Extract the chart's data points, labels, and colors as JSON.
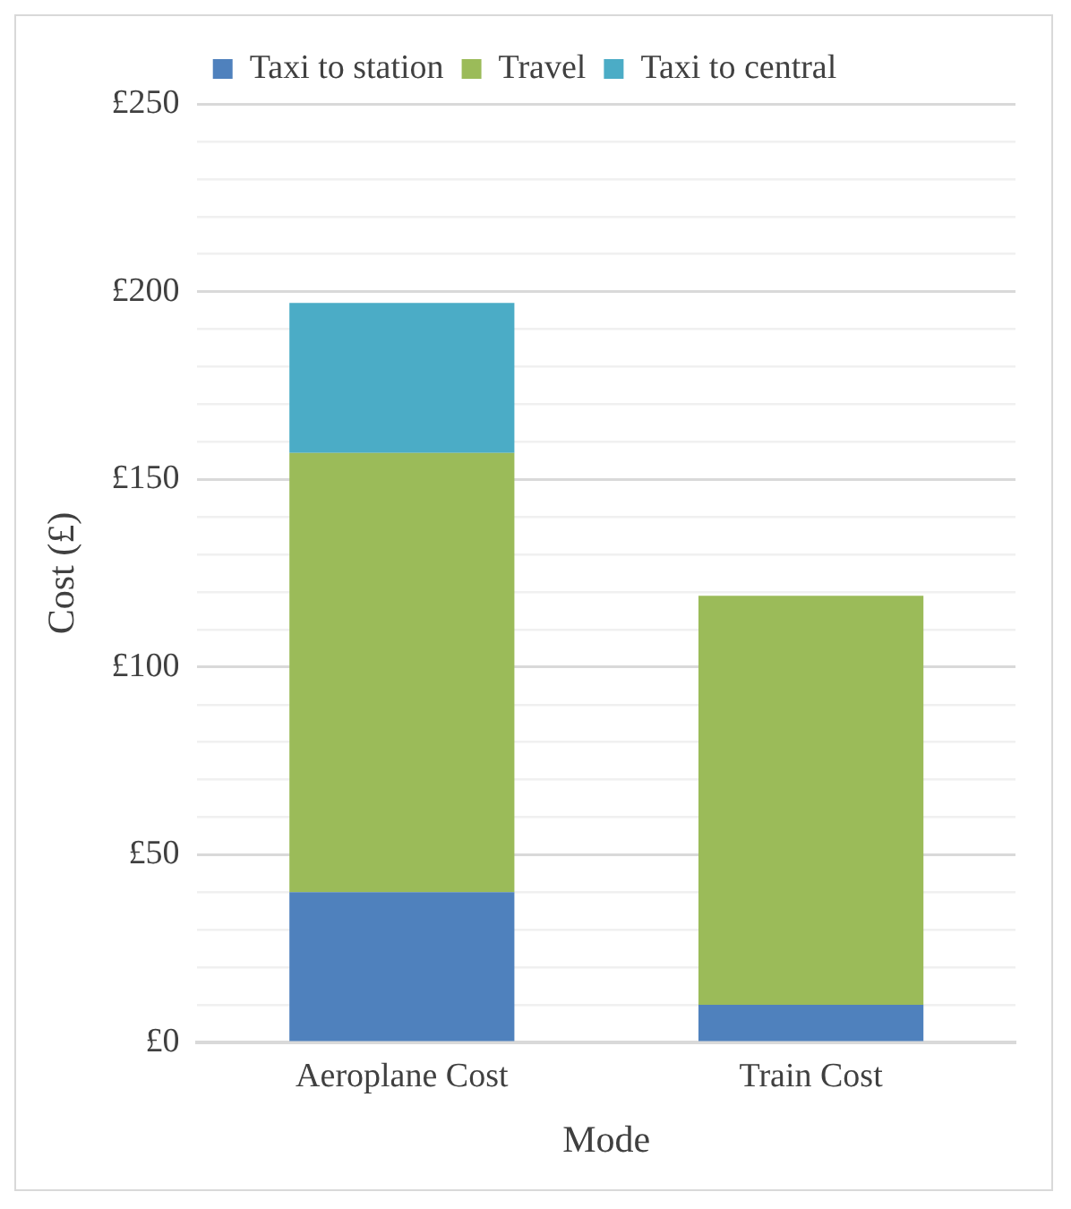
{
  "chart_data": {
    "type": "bar",
    "stacked": true,
    "xlabel": "Mode",
    "ylabel": "Cost (£)",
    "categories": [
      "Aeroplane Cost",
      "Train Cost"
    ],
    "series": [
      {
        "name": "Taxi to station",
        "color": "#4f81bd",
        "values": [
          40,
          10
        ]
      },
      {
        "name": "Travel",
        "color": "#9bbb59",
        "values": [
          117,
          109
        ]
      },
      {
        "name": "Taxi to central",
        "color": "#4bacc6",
        "values": [
          40,
          null
        ]
      }
    ],
    "ylim": [
      0,
      250
    ],
    "yticks": [
      {
        "value": 0,
        "label": "£0"
      },
      {
        "value": 10,
        "label": null
      },
      {
        "value": 20,
        "label": null
      },
      {
        "value": 30,
        "label": null
      },
      {
        "value": 40,
        "label": null
      },
      {
        "value": 50,
        "label": "£50"
      },
      {
        "value": 60,
        "label": null
      },
      {
        "value": 70,
        "label": null
      },
      {
        "value": 80,
        "label": null
      },
      {
        "value": 90,
        "label": null
      },
      {
        "value": 100,
        "label": "£100"
      },
      {
        "value": 110,
        "label": null
      },
      {
        "value": 120,
        "label": null
      },
      {
        "value": 130,
        "label": null
      },
      {
        "value": 140,
        "label": null
      },
      {
        "value": 150,
        "label": "£150"
      },
      {
        "value": 160,
        "label": null
      },
      {
        "value": 170,
        "label": null
      },
      {
        "value": 180,
        "label": null
      },
      {
        "value": 190,
        "label": null
      },
      {
        "value": 200,
        "label": "£200"
      },
      {
        "value": 210,
        "label": null
      },
      {
        "value": 220,
        "label": null
      },
      {
        "value": 230,
        "label": null
      },
      {
        "value": 240,
        "label": null
      },
      {
        "value": 250,
        "label": "£250"
      }
    ],
    "grid": "y",
    "legend": "top"
  }
}
